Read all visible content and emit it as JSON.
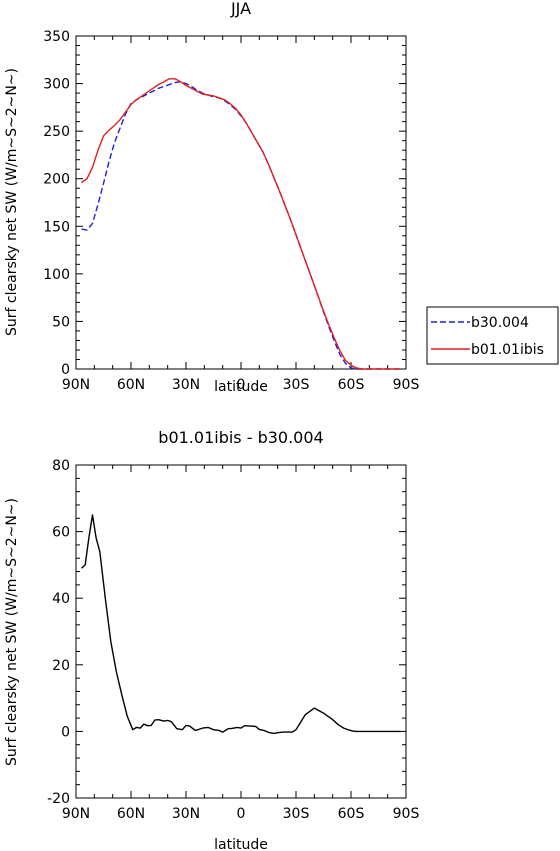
{
  "chart_data": [
    {
      "type": "line",
      "title": "JJA",
      "xlabel": "latitude",
      "ylabel": "Surf clearsky net SW (W/m~S~2~N~)",
      "xlim": [
        90,
        -90
      ],
      "ylim": [
        0,
        350
      ],
      "xticks": [
        90,
        60,
        30,
        0,
        -30,
        -60,
        -90
      ],
      "xtick_labels": [
        "90N",
        "60N",
        "30N",
        "0",
        "30S",
        "60S",
        "90S"
      ],
      "yticks": [
        0,
        50,
        100,
        150,
        200,
        250,
        300,
        350
      ],
      "ytick_labels": [
        "0",
        "50",
        "100",
        "150",
        "200",
        "250",
        "300",
        "350"
      ],
      "legend": "right",
      "series": [
        {
          "name": "b30.004",
          "color": "#1f1fd6",
          "dash": "dashed",
          "x": [
            87,
            84,
            81,
            78,
            75,
            72,
            69,
            66,
            63,
            60,
            57,
            54,
            51,
            48,
            45,
            42,
            39,
            36,
            33,
            30,
            27,
            24,
            21,
            18,
            15,
            12,
            9,
            6,
            3,
            0,
            -3,
            -6,
            -9,
            -12,
            -15,
            -18,
            -21,
            -24,
            -27,
            -30,
            -33,
            -36,
            -39,
            -42,
            -45,
            -48,
            -51,
            -54,
            -57,
            -60,
            -63,
            -66,
            -69,
            -72,
            -75,
            -78,
            -81,
            -84,
            -87
          ],
          "y": [
            147,
            146,
            153,
            173,
            195,
            218,
            238,
            253,
            268,
            279,
            283,
            286,
            289,
            292,
            295,
            297,
            299,
            301,
            302,
            300,
            297,
            293,
            290,
            288,
            286,
            285,
            282,
            278,
            273,
            266,
            258,
            248,
            238,
            228,
            215,
            201,
            187,
            172,
            157,
            141,
            125,
            109,
            93,
            77,
            60,
            44,
            29,
            15,
            6,
            1,
            0,
            0,
            0,
            0,
            0,
            0,
            0,
            0,
            0
          ]
        },
        {
          "name": "b01.01ibis",
          "color": "#e02020",
          "dash": "solid",
          "x": [
            87,
            84,
            81,
            78,
            75,
            72,
            69,
            66,
            63,
            60,
            57,
            54,
            51,
            48,
            45,
            42,
            39,
            36,
            33,
            30,
            27,
            24,
            21,
            18,
            15,
            12,
            9,
            6,
            3,
            0,
            -3,
            -6,
            -9,
            -12,
            -15,
            -18,
            -21,
            -24,
            -27,
            -30,
            -33,
            -36,
            -39,
            -42,
            -45,
            -48,
            -51,
            -54,
            -57,
            -60,
            -63,
            -66,
            -69,
            -72,
            -75,
            -78,
            -81,
            -84,
            -87
          ],
          "y": [
            196,
            200,
            212,
            230,
            245,
            251,
            256,
            262,
            270,
            278,
            283,
            287,
            291,
            295,
            299,
            302,
            305,
            305,
            302,
            298,
            295,
            292,
            289,
            288,
            287,
            285,
            283,
            279,
            274,
            267,
            258,
            248,
            238,
            228,
            215,
            201,
            187,
            172,
            157,
            141,
            125,
            109,
            93,
            77,
            61,
            46,
            32,
            19,
            9,
            4,
            1,
            0,
            0,
            0,
            0,
            0,
            0,
            0,
            0
          ]
        }
      ]
    },
    {
      "type": "line",
      "title": "b01.01ibis - b30.004",
      "xlabel": "latitude",
      "ylabel": "Surf clearsky net SW (W/m~S~2~N~)",
      "xlim": [
        90,
        -90
      ],
      "ylim": [
        -20,
        80
      ],
      "xticks": [
        90,
        60,
        30,
        0,
        -30,
        -60,
        -90
      ],
      "xtick_labels": [
        "90N",
        "60N",
        "30N",
        "0",
        "30S",
        "60S",
        "90S"
      ],
      "yticks": [
        -20,
        0,
        20,
        40,
        60,
        80
      ],
      "ytick_labels": [
        "-20",
        "0",
        "20",
        "40",
        "60",
        "80"
      ],
      "series": [
        {
          "color": "#000000",
          "dash": "solid",
          "x": [
            87,
            85,
            83,
            81,
            79,
            77,
            74,
            71,
            68,
            65,
            62,
            59,
            57,
            55,
            53,
            51,
            49,
            47,
            45,
            42,
            40,
            38,
            35,
            32,
            30,
            28,
            25,
            23,
            21,
            18,
            15,
            12,
            10,
            7,
            5,
            2,
            0,
            -2,
            -5,
            -8,
            -10,
            -13,
            -15,
            -18,
            -20,
            -23,
            -25,
            -28,
            -30,
            -35,
            -40,
            -45,
            -50,
            -53,
            -56,
            -59,
            -61,
            -63,
            -66,
            -70,
            -73,
            -76,
            -80,
            -84,
            -87
          ],
          "y": [
            49,
            50,
            58,
            65,
            58,
            54,
            40,
            27,
            18,
            11,
            4.5,
            0.5,
            1.2,
            1.0,
            2.2,
            1.7,
            1.8,
            3.4,
            3.5,
            3.1,
            3.3,
            2.9,
            0.8,
            0.5,
            1.8,
            1.6,
            0.3,
            0.6,
            1.0,
            1.2,
            0.5,
            0.3,
            -0.2,
            0.8,
            0.9,
            1.2,
            1.0,
            1.7,
            1.6,
            1.5,
            0.6,
            0.2,
            -0.3,
            -0.6,
            -0.4,
            -0.2,
            -0.2,
            -0.2,
            0.5,
            5.0,
            7.0,
            5.5,
            3.5,
            2.0,
            1.0,
            0.4,
            0.1,
            0.0,
            0.0,
            0.0,
            0.0,
            0.0,
            0.0,
            0.0,
            0.0
          ]
        }
      ]
    }
  ]
}
